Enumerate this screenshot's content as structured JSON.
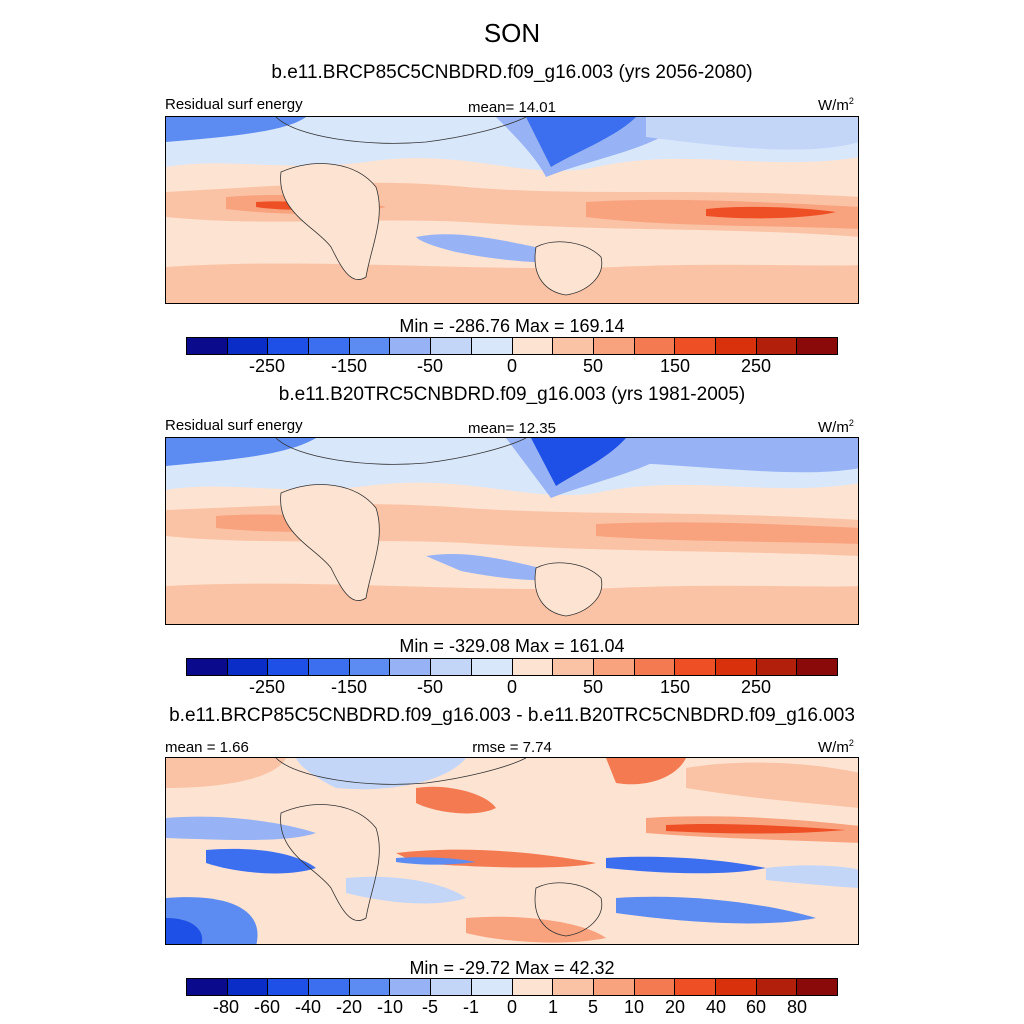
{
  "season_title": "SON",
  "colorbar_colors": [
    "#0a0a8c",
    "#0a2dc8",
    "#1e4fe6",
    "#3c6ff0",
    "#5c8cf2",
    "#97b3f5",
    "#c4d6f8",
    "#d9e7fb",
    "#fde3d2",
    "#fbc3a5",
    "#f8a27e",
    "#f47a52",
    "#ee4f25",
    "#d8310c",
    "#b21f0a",
    "#8a0a0a"
  ],
  "panels": [
    {
      "title": "b.e11.BRCP85C5CNBDRD.f09_g16.003 (yrs 2056-2080)",
      "left_label": "Residual surf energy",
      "center_label": "mean=  14.01",
      "units": "W/m",
      "units_exp": "2",
      "minmax": "Min = -286.76 Max = 169.14",
      "ticks": [
        "-250",
        "-150",
        "-50",
        "0",
        "50",
        "150",
        "250"
      ]
    },
    {
      "title": "b.e11.B20TRC5CNBDRD.f09_g16.003 (yrs 1981-2005)",
      "left_label": "Residual surf energy",
      "center_label": "mean=  12.35",
      "units": "W/m",
      "units_exp": "2",
      "minmax": "Min = -329.08 Max = 161.04",
      "ticks": [
        "-250",
        "-150",
        "-50",
        "0",
        "50",
        "150",
        "250"
      ]
    },
    {
      "title": "b.e11.BRCP85C5CNBDRD.f09_g16.003 - b.e11.B20TRC5CNBDRD.f09_g16.003",
      "left_label": "mean =   1.66",
      "center_label": "rmse =   7.74",
      "units": "W/m",
      "units_exp": "2",
      "minmax": "Min = -29.72 Max =  42.32",
      "ticks": [
        "-80",
        "-60",
        "-40",
        "-20",
        "-10",
        "-5",
        "-1",
        "0",
        "1",
        "5",
        "10",
        "20",
        "40",
        "60",
        "80"
      ]
    }
  ]
}
